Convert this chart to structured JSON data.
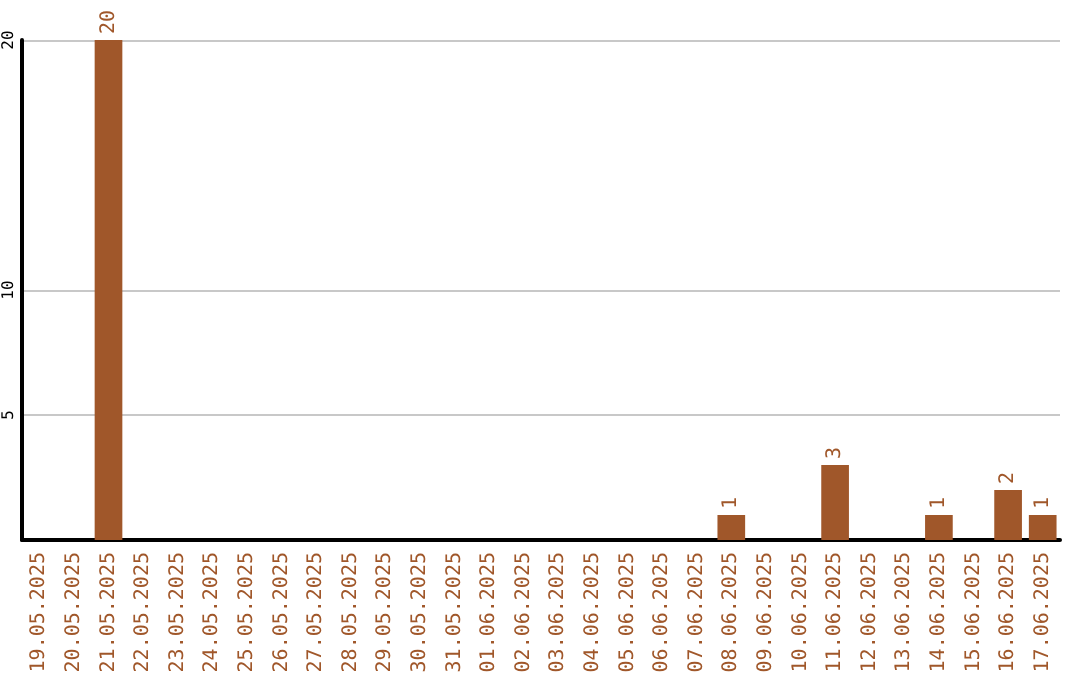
{
  "chart_data": {
    "type": "bar",
    "categories": [
      "19.05.2025",
      "20.05.2025",
      "21.05.2025",
      "22.05.2025",
      "23.05.2025",
      "24.05.2025",
      "25.05.2025",
      "26.05.2025",
      "27.05.2025",
      "28.05.2025",
      "29.05.2025",
      "30.05.2025",
      "31.05.2025",
      "01.06.2025",
      "02.06.2025",
      "03.06.2025",
      "04.06.2025",
      "05.06.2025",
      "06.06.2025",
      "07.06.2025",
      "08.06.2025",
      "09.06.2025",
      "10.06.2025",
      "11.06.2025",
      "12.06.2025",
      "13.06.2025",
      "14.06.2025",
      "15.06.2025",
      "16.06.2025",
      "17.06.2025"
    ],
    "values": [
      null,
      null,
      20,
      null,
      null,
      null,
      null,
      null,
      null,
      null,
      null,
      null,
      null,
      null,
      null,
      null,
      null,
      null,
      null,
      null,
      1,
      null,
      null,
      3,
      null,
      null,
      1,
      null,
      2,
      1
    ],
    "color": "#a0572a",
    "ylim": [
      0,
      20
    ],
    "yticks": [
      5,
      10,
      20
    ],
    "grid": "y",
    "data_labels": true
  }
}
